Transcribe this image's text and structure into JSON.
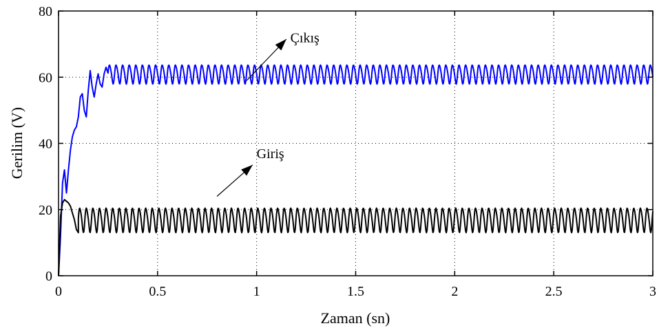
{
  "chart_data": {
    "type": "line",
    "title": "",
    "xlabel": "Zaman (sn)",
    "ylabel": "Gerilim (V)",
    "xlim": [
      0,
      3
    ],
    "ylim": [
      0,
      80
    ],
    "xticks": [
      0,
      0.5,
      1,
      1.5,
      2,
      2.5,
      3
    ],
    "xtick_labels": [
      "0",
      "0.5",
      "1",
      "1.5",
      "2",
      "2.5",
      "3"
    ],
    "yticks": [
      0,
      20,
      40,
      60,
      80
    ],
    "ytick_labels": [
      "0",
      "20",
      "40",
      "60",
      "80"
    ],
    "grid": true,
    "legend": null,
    "series": [
      {
        "color": "#0000ff",
        "startup": {
          "x": [
            0,
            0.01,
            0.02,
            0.03,
            0.04,
            0.05,
            0.06,
            0.07,
            0.08,
            0.09,
            0.1,
            0.11,
            0.12,
            0.13,
            0.14,
            0.15,
            0.16,
            0.17,
            0.18,
            0.19,
            0.2,
            0.21,
            0.22,
            0.23,
            0.24
          ],
          "y": [
            0,
            12,
            28,
            32,
            25,
            32,
            38,
            42,
            44,
            45,
            48,
            54,
            55,
            50,
            48,
            56,
            62,
            57,
            54,
            58,
            61,
            58,
            57,
            61,
            63
          ]
        },
        "steady": {
          "x_start": 0.25,
          "x_end": 3.0,
          "period": 0.0333,
          "y_mean": 61,
          "y_amplitude": 2.8
        }
      },
      {
        "color": "#000000",
        "startup": {
          "x": [
            0,
            0.01,
            0.02,
            0.03,
            0.04,
            0.05,
            0.06,
            0.07,
            0.08,
            0.09,
            0.1
          ],
          "y": [
            0,
            18,
            22,
            23,
            22.5,
            22,
            21,
            19,
            17,
            14,
            13
          ]
        },
        "steady": {
          "x_start": 0.1,
          "x_end": 3.0,
          "period": 0.0333,
          "y_mean": 17,
          "y_amplitude": 3.6
        }
      }
    ],
    "annotations": [
      {
        "text": "Çıkış",
        "x_text": 1.17,
        "y_text": 70.5,
        "arrow_from": [
          0.95,
          59
        ],
        "arrow_to": [
          1.15,
          71.5
        ]
      },
      {
        "text": "Giriş",
        "x_text": 1.0,
        "y_text": 35.5,
        "arrow_from": [
          0.8,
          24
        ],
        "arrow_to": [
          0.98,
          33.5
        ]
      }
    ]
  }
}
